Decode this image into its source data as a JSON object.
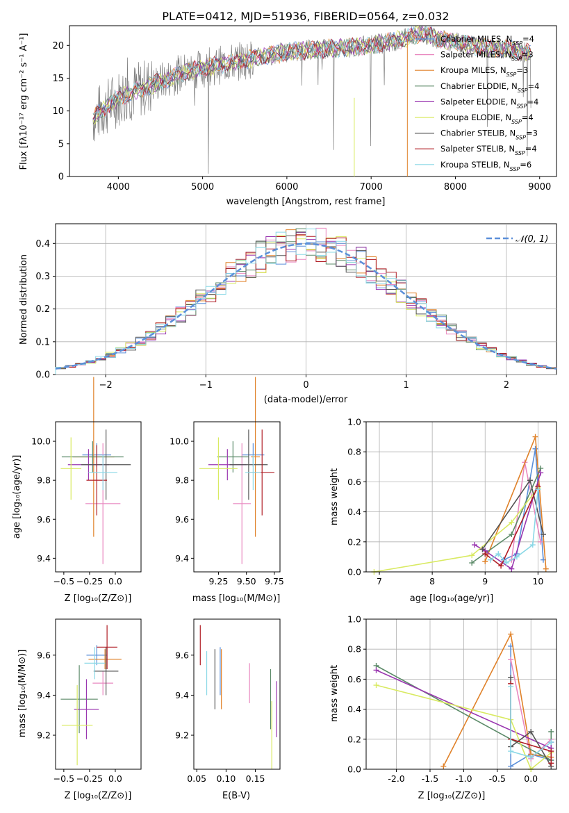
{
  "title": "PLATE=0412, MJD=51936, FIBERID=0564, z=0.032",
  "chart_data": [
    {
      "id": "spectrum",
      "type": "line",
      "xlabel": "wavelength [Angstrom, rest frame]",
      "ylabel": "Flux [fλ10⁻¹⁷ erg cm⁻² s⁻¹ A⁻¹]",
      "xlim": [
        3420,
        9200
      ],
      "ylim": [
        0,
        23
      ],
      "xticks": [
        4000,
        5000,
        6000,
        7000,
        8000,
        9000
      ],
      "yticks": [
        0,
        5,
        10,
        15,
        20
      ],
      "grid": false,
      "legend_position": "right",
      "series": [
        {
          "name": "Chabrier MILES, N_SSP=4",
          "color": "#5b8fd9"
        },
        {
          "name": "Salpeter MILES, N_SSP=3",
          "color": "#e989c0"
        },
        {
          "name": "Kroupa MILES, N_SSP=3",
          "color": "#e0822a"
        },
        {
          "name": "Chabrier ELODIE, N_SSP=4",
          "color": "#5b8a68"
        },
        {
          "name": "Salpeter ELODIE, N_SSP=4",
          "color": "#9a37b0"
        },
        {
          "name": "Kroupa ELODIE, N_SSP=4",
          "color": "#d9ea62"
        },
        {
          "name": "Chabrier STELIB, N_SSP=3",
          "color": "#555555"
        },
        {
          "name": "Salpeter STELIB, N_SSP=4",
          "color": "#b01c24"
        },
        {
          "name": "Kroupa STELIB, N_SSP=6",
          "color": "#8ad8e6"
        }
      ],
      "data_series": {
        "name": "data",
        "color": "#7f7f7f",
        "x": [
          3700,
          3800,
          3900,
          4000,
          4100,
          4200,
          4300,
          4400,
          4500,
          4600,
          4800,
          5000,
          5200,
          5400,
          5600,
          5800,
          6000,
          6200,
          6400,
          6600,
          6800,
          7000,
          7200,
          7400,
          7500,
          7600,
          7700,
          7800,
          8000,
          8200,
          8400,
          8600,
          8800,
          8900
        ],
        "y": [
          9,
          10,
          11,
          12,
          12.5,
          13,
          13.5,
          14,
          14.5,
          15,
          16,
          16.5,
          17,
          17.5,
          18,
          18.5,
          19,
          19.2,
          19.4,
          19.6,
          19.8,
          20,
          20.5,
          21,
          21.5,
          21.8,
          21.5,
          21,
          20.5,
          20,
          19.5,
          19.5,
          19,
          19
        ]
      }
    },
    {
      "id": "residuals",
      "type": "histogram",
      "xlabel": "(data-model)/error",
      "ylabel": "Normed distribution",
      "xlim": [
        -2.5,
        2.5
      ],
      "ylim": [
        0,
        0.46
      ],
      "xticks": [
        -2,
        -1,
        0,
        1,
        2
      ],
      "yticks": [
        0.0,
        0.1,
        0.2,
        0.3,
        0.4
      ],
      "grid": true,
      "legend": "𝒩(0, 1)",
      "legend_position": "top-right",
      "curve": {
        "type": "normal",
        "mean": 0,
        "sigma": 1,
        "color": "#5b8fd9"
      }
    },
    {
      "id": "age-vs-Z",
      "type": "errorbar",
      "xlabel": "Z [log₁₀(Z/Z⊙)]",
      "ylabel": "age  [log₁₀(age/yr)]",
      "xlim": [
        -0.58,
        0.25
      ],
      "ylim": [
        9.33,
        10.1
      ],
      "xticks": [
        -0.5,
        -0.25,
        0.0
      ],
      "yticks": [
        9.4,
        9.6,
        9.8,
        10.0
      ],
      "points": [
        {
          "series": "Chabrier MILES",
          "x": -0.18,
          "y": 9.93,
          "xerr": 0.14,
          "yerr": 0.06
        },
        {
          "series": "Salpeter MILES",
          "x": -0.12,
          "y": 9.68,
          "xerr": 0.17,
          "yerr": 0.31
        },
        {
          "series": "Kroupa MILES",
          "x": -0.21,
          "y": 9.92,
          "xerr": 0.2,
          "yerr": 0.41
        },
        {
          "series": "Chabrier ELODIE",
          "x": -0.22,
          "y": 9.92,
          "xerr": 0.3,
          "yerr": 0.08
        },
        {
          "series": "Salpeter ELODIE",
          "x": -0.26,
          "y": 9.88,
          "xerr": 0.2,
          "yerr": 0.08
        },
        {
          "series": "Kroupa ELODIE",
          "x": -0.43,
          "y": 9.86,
          "xerr": 0.1,
          "yerr": 0.16
        },
        {
          "series": "Chabrier STELIB",
          "x": -0.09,
          "y": 9.88,
          "xerr": 0.24,
          "yerr": 0.18
        },
        {
          "series": "Salpeter STELIB",
          "x": -0.18,
          "y": 9.8,
          "xerr": 0.1,
          "yerr": 0.18
        },
        {
          "series": "Kroupa STELIB",
          "x": -0.12,
          "y": 9.84,
          "xerr": 0.14,
          "yerr": 0.09
        }
      ]
    },
    {
      "id": "age-vs-mass",
      "type": "errorbar",
      "xlabel": "mass [log₁₀(M/M⊙)]",
      "xlim": [
        9.03,
        9.8
      ],
      "ylim": [
        9.33,
        10.1
      ],
      "xticks": [
        9.25,
        9.5,
        9.75
      ],
      "yticks": [
        9.4,
        9.6,
        9.8,
        10.0
      ],
      "points": [
        {
          "series": "Chabrier MILES",
          "x": 9.56,
          "y": 9.93,
          "xerr": 0.1,
          "yerr": 0.06
        },
        {
          "series": "Salpeter MILES",
          "x": 9.46,
          "y": 9.68,
          "xerr": 0.08,
          "yerr": 0.31
        },
        {
          "series": "Kroupa MILES",
          "x": 9.58,
          "y": 9.92,
          "xerr": 0.04,
          "yerr": 0.41
        },
        {
          "series": "Chabrier ELODIE",
          "x": 9.38,
          "y": 9.92,
          "xerr": 0.14,
          "yerr": 0.08
        },
        {
          "series": "Salpeter ELODIE",
          "x": 9.33,
          "y": 9.88,
          "xerr": 0.17,
          "yerr": 0.08
        },
        {
          "series": "Kroupa ELODIE",
          "x": 9.25,
          "y": 9.86,
          "xerr": 0.17,
          "yerr": 0.16
        },
        {
          "series": "Chabrier STELIB",
          "x": 9.52,
          "y": 9.88,
          "xerr": 0.17,
          "yerr": 0.18
        },
        {
          "series": "Salpeter STELIB",
          "x": 9.64,
          "y": 9.84,
          "xerr": 0.11,
          "yerr": 0.22
        },
        {
          "series": "Kroupa STELIB",
          "x": 9.56,
          "y": 9.84,
          "xerr": 0.07,
          "yerr": 0.09
        }
      ]
    },
    {
      "id": "weight-vs-age",
      "type": "line",
      "xlabel": "age  [log₁₀(age/yr)]",
      "ylabel": "mass weight",
      "xlim": [
        6.75,
        10.35
      ],
      "ylim": [
        0,
        1
      ],
      "xticks": [
        7,
        8,
        9,
        10
      ],
      "yticks": [
        0.0,
        0.2,
        0.4,
        0.6,
        0.8,
        1.0
      ],
      "grid": true,
      "series": [
        {
          "name": "Chabrier MILES",
          "x": [
            9.35,
            9.6,
            9.95,
            10.1
          ],
          "y": [
            0.08,
            0.12,
            0.82,
            0.08
          ]
        },
        {
          "name": "Salpeter MILES",
          "x": [
            9.5,
            9.75,
            10.05
          ],
          "y": [
            0.08,
            0.73,
            0.2
          ]
        },
        {
          "name": "Kroupa MILES",
          "x": [
            9.0,
            9.95,
            10.15
          ],
          "y": [
            0.07,
            0.9,
            0.02
          ]
        },
        {
          "name": "Chabrier ELODIE",
          "x": [
            8.75,
            9.5,
            10.05
          ],
          "y": [
            0.06,
            0.25,
            0.69
          ]
        },
        {
          "name": "Salpeter ELODIE",
          "x": [
            8.8,
            9.0,
            9.5,
            10.05
          ],
          "y": [
            0.18,
            0.14,
            0.02,
            0.66
          ]
        },
        {
          "name": "Kroupa ELODIE",
          "x": [
            6.9,
            8.75,
            9.5,
            10.0
          ],
          "y": [
            0.0,
            0.11,
            0.33,
            0.56
          ]
        },
        {
          "name": "Chabrier STELIB",
          "x": [
            8.95,
            9.85,
            10.1
          ],
          "y": [
            0.15,
            0.61,
            0.25
          ]
        },
        {
          "name": "Salpeter STELIB",
          "x": [
            9.0,
            9.3,
            10.0
          ],
          "y": [
            0.12,
            0.04,
            0.57
          ]
        },
        {
          "name": "Kroupa STELIB",
          "x": [
            9.1,
            9.25,
            9.4,
            9.6,
            9.9,
            10.0
          ],
          "y": [
            0.08,
            0.12,
            0.06,
            0.1,
            0.18,
            0.55
          ]
        }
      ]
    },
    {
      "id": "mass-vs-Z",
      "type": "errorbar",
      "xlabel": "Z [log₁₀(Z/Z⊙)]",
      "ylabel": "mass [log₁₀(M/M⊙)]",
      "xlim": [
        -0.58,
        0.25
      ],
      "ylim": [
        9.03,
        9.78
      ],
      "xticks": [
        -0.5,
        -0.25,
        0.0
      ],
      "yticks": [
        9.2,
        9.4,
        9.6
      ],
      "points": [
        {
          "series": "Chabrier MILES",
          "x": -0.18,
          "y": 9.6,
          "xerr": 0.1,
          "yerr": 0.05
        },
        {
          "series": "Salpeter MILES",
          "x": -0.12,
          "y": 9.46,
          "xerr": 0.1,
          "yerr": 0.06
        },
        {
          "series": "Kroupa MILES",
          "x": -0.1,
          "y": 9.58,
          "xerr": 0.16,
          "yerr": 0.05
        },
        {
          "series": "Chabrier ELODIE",
          "x": -0.35,
          "y": 9.38,
          "xerr": 0.18,
          "yerr": 0.17
        },
        {
          "series": "Salpeter ELODIE",
          "x": -0.28,
          "y": 9.33,
          "xerr": 0.12,
          "yerr": 0.15
        },
        {
          "series": "Kroupa ELODIE",
          "x": -0.37,
          "y": 9.25,
          "xerr": 0.15,
          "yerr": 0.2
        },
        {
          "series": "Chabrier STELIB",
          "x": -0.09,
          "y": 9.52,
          "xerr": 0.12,
          "yerr": 0.12
        },
        {
          "series": "Salpeter STELIB",
          "x": -0.08,
          "y": 9.64,
          "xerr": 0.1,
          "yerr": 0.11
        },
        {
          "series": "Kroupa STELIB",
          "x": -0.2,
          "y": 9.56,
          "xerr": 0.1,
          "yerr": 0.08
        }
      ]
    },
    {
      "id": "mass-vs-ebv",
      "type": "errorbar",
      "xlabel": "E(B-V)",
      "xlim": [
        0.045,
        0.192
      ],
      "ylim": [
        9.03,
        9.78
      ],
      "xticks": [
        0.05,
        0.1,
        0.15
      ],
      "yticks": [
        9.2,
        9.4,
        9.6
      ],
      "points": [
        {
          "series": "Chabrier MILES",
          "x": 0.09,
          "y": 9.52,
          "yerr": 0.12
        },
        {
          "series": "Salpeter MILES",
          "x": 0.14,
          "y": 9.46,
          "yerr": 0.1
        },
        {
          "series": "Kroupa MILES",
          "x": 0.092,
          "y": 9.48,
          "yerr": 0.15
        },
        {
          "series": "Chabrier ELODIE",
          "x": 0.176,
          "y": 9.38,
          "yerr": 0.15
        },
        {
          "series": "Salpeter ELODIE",
          "x": 0.186,
          "y": 9.33,
          "yerr": 0.14
        },
        {
          "series": "Kroupa ELODIE",
          "x": 0.178,
          "y": 9.2,
          "yerr": 0.17
        },
        {
          "series": "Chabrier STELIB",
          "x": 0.081,
          "y": 9.48,
          "yerr": 0.15
        },
        {
          "series": "Salpeter STELIB",
          "x": 0.056,
          "y": 9.65,
          "yerr": 0.1
        },
        {
          "series": "Kroupa STELIB",
          "x": 0.067,
          "y": 9.51,
          "yerr": 0.11
        }
      ]
    },
    {
      "id": "weight-vs-Z",
      "type": "line",
      "xlabel": "Z [log₁₀(Z/Z⊙)]",
      "ylabel": "mass weight",
      "xlim": [
        -2.45,
        0.38
      ],
      "ylim": [
        0,
        1
      ],
      "xticks": [
        -2.0,
        -1.5,
        -1.0,
        -0.5,
        0.0
      ],
      "yticks": [
        0.0,
        0.2,
        0.4,
        0.6,
        0.8,
        1.0
      ],
      "grid": true,
      "series": [
        {
          "name": "Chabrier MILES",
          "x": [
            -0.3,
            -0.3,
            0.0,
            0.3
          ],
          "y": [
            0.82,
            0.02,
            0.1,
            0.06
          ]
        },
        {
          "name": "Salpeter MILES",
          "x": [
            -0.3,
            0.0,
            0.3
          ],
          "y": [
            0.73,
            0.07,
            0.2
          ]
        },
        {
          "name": "Kroupa MILES",
          "x": [
            -1.3,
            -0.3,
            0.0,
            0.3
          ],
          "y": [
            0.02,
            0.9,
            0.1,
            0.08
          ]
        },
        {
          "name": "Chabrier ELODIE",
          "x": [
            -2.3,
            -0.3,
            0.3,
            0.3
          ],
          "y": [
            0.69,
            0.2,
            0.06,
            0.25
          ]
        },
        {
          "name": "Salpeter ELODIE",
          "x": [
            -2.3,
            0.3,
            0.3
          ],
          "y": [
            0.66,
            0.14,
            0.18
          ]
        },
        {
          "name": "Kroupa ELODIE",
          "x": [
            -2.3,
            -0.3,
            0.0,
            0.3
          ],
          "y": [
            0.56,
            0.33,
            0.0,
            0.11
          ]
        },
        {
          "name": "Chabrier STELIB",
          "x": [
            -0.3,
            -0.3,
            0.0,
            0.3
          ],
          "y": [
            0.61,
            0.15,
            0.25,
            0.02
          ]
        },
        {
          "name": "Salpeter STELIB",
          "x": [
            -0.3,
            -0.3,
            0.3,
            0.3
          ],
          "y": [
            0.57,
            0.2,
            0.12,
            0.04
          ]
        },
        {
          "name": "Kroupa STELIB",
          "x": [
            -0.3,
            -0.3,
            0.0,
            0.3
          ],
          "y": [
            0.55,
            0.12,
            0.08,
            0.18
          ]
        }
      ]
    }
  ]
}
